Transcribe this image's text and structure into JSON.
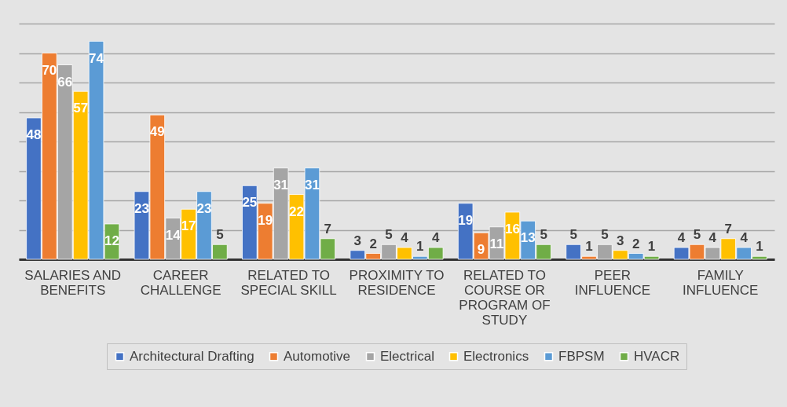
{
  "chart_data": {
    "type": "bar",
    "categories": [
      "SALARIES AND BENEFITS",
      "CAREER CHALLENGE",
      "RELATED TO SPECIAL SKILL",
      "PROXIMITY TO RESIDENCE",
      "RELATED TO COURSE OR PROGRAM OF STUDY",
      "PEER INFLUENCE",
      "FAMILY INFLUENCE"
    ],
    "series": [
      {
        "name": "Architectural Drafting",
        "color": "#4472c4",
        "values": [
          48,
          23,
          25,
          3,
          19,
          5,
          4
        ]
      },
      {
        "name": "Automotive",
        "color": "#ed7d31",
        "values": [
          70,
          49,
          19,
          2,
          9,
          1,
          5
        ]
      },
      {
        "name": "Electrical",
        "color": "#a5a5a5",
        "values": [
          66,
          14,
          31,
          5,
          11,
          5,
          4
        ]
      },
      {
        "name": "Electronics",
        "color": "#ffc000",
        "values": [
          57,
          17,
          22,
          4,
          16,
          3,
          7
        ]
      },
      {
        "name": "FBPSM",
        "color": "#5b9bd5",
        "values": [
          74,
          23,
          31,
          1,
          13,
          2,
          4
        ]
      },
      {
        "name": "HVACR",
        "color": "#70ad47",
        "values": [
          12,
          5,
          7,
          4,
          5,
          1,
          1
        ]
      }
    ],
    "ylim": [
      0,
      80
    ],
    "tick_labels": "x",
    "grid": "y",
    "legend": "bottom",
    "data_labels": true
  }
}
